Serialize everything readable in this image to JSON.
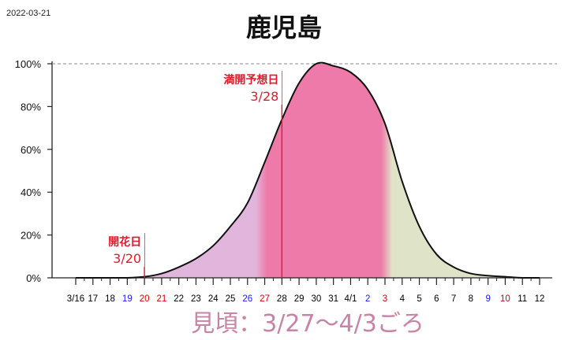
{
  "date": "2022-03-21",
  "title": "鹿児島",
  "mikoro_text": "見頃：3/27～4/3ごろ",
  "chart_data": {
    "type": "area",
    "title": "鹿児島",
    "ylim": [
      0,
      100
    ],
    "y_ticks": [
      "0%",
      "20%",
      "40%",
      "60%",
      "80%",
      "100%"
    ],
    "x_ticks": [
      {
        "label": "3/16",
        "color": "#000000"
      },
      {
        "label": "17",
        "color": "#000000"
      },
      {
        "label": "18",
        "color": "#000000"
      },
      {
        "label": "19",
        "color": "#1a1aff"
      },
      {
        "label": "20",
        "color": "#e00000"
      },
      {
        "label": "21",
        "color": "#e00000"
      },
      {
        "label": "22",
        "color": "#000000"
      },
      {
        "label": "23",
        "color": "#000000"
      },
      {
        "label": "24",
        "color": "#000000"
      },
      {
        "label": "25",
        "color": "#000000"
      },
      {
        "label": "26",
        "color": "#1a1aff"
      },
      {
        "label": "27",
        "color": "#e00000"
      },
      {
        "label": "28",
        "color": "#000000"
      },
      {
        "label": "29",
        "color": "#000000"
      },
      {
        "label": "30",
        "color": "#000000"
      },
      {
        "label": "31",
        "color": "#000000"
      },
      {
        "label": "4/1",
        "color": "#000000"
      },
      {
        "label": "2",
        "color": "#1a1aff"
      },
      {
        "label": "3",
        "color": "#e00000"
      },
      {
        "label": "4",
        "color": "#000000"
      },
      {
        "label": "5",
        "color": "#000000"
      },
      {
        "label": "6",
        "color": "#000000"
      },
      {
        "label": "7",
        "color": "#000000"
      },
      {
        "label": "8",
        "color": "#000000"
      },
      {
        "label": "9",
        "color": "#1a1aff"
      },
      {
        "label": "10",
        "color": "#e00000"
      },
      {
        "label": "11",
        "color": "#000000"
      },
      {
        "label": "12",
        "color": "#000000"
      }
    ],
    "series": [
      {
        "values": [
          0,
          0,
          0,
          0,
          0.5,
          2,
          5,
          9,
          15,
          24,
          35,
          54,
          74,
          91,
          100,
          99,
          96,
          88,
          72,
          45,
          24,
          11,
          5,
          2,
          1,
          0.5,
          0,
          0
        ]
      }
    ],
    "bands": [
      {
        "from": 4,
        "to": 10.8,
        "color": "#e2b6dc"
      },
      {
        "from": 10.8,
        "to": 18.1,
        "color": "#ee7aa9"
      },
      {
        "from": 18.1,
        "to": 27,
        "color": "#dfe3c8"
      }
    ],
    "markers": [
      {
        "label": "開花日",
        "date": "3/20",
        "x": 4,
        "color": "#e01a2a"
      },
      {
        "label": "満開予想日",
        "date": "3/28",
        "x": 12,
        "color": "#e01a2a"
      }
    ],
    "grid": false,
    "reference_line_y": 100
  }
}
